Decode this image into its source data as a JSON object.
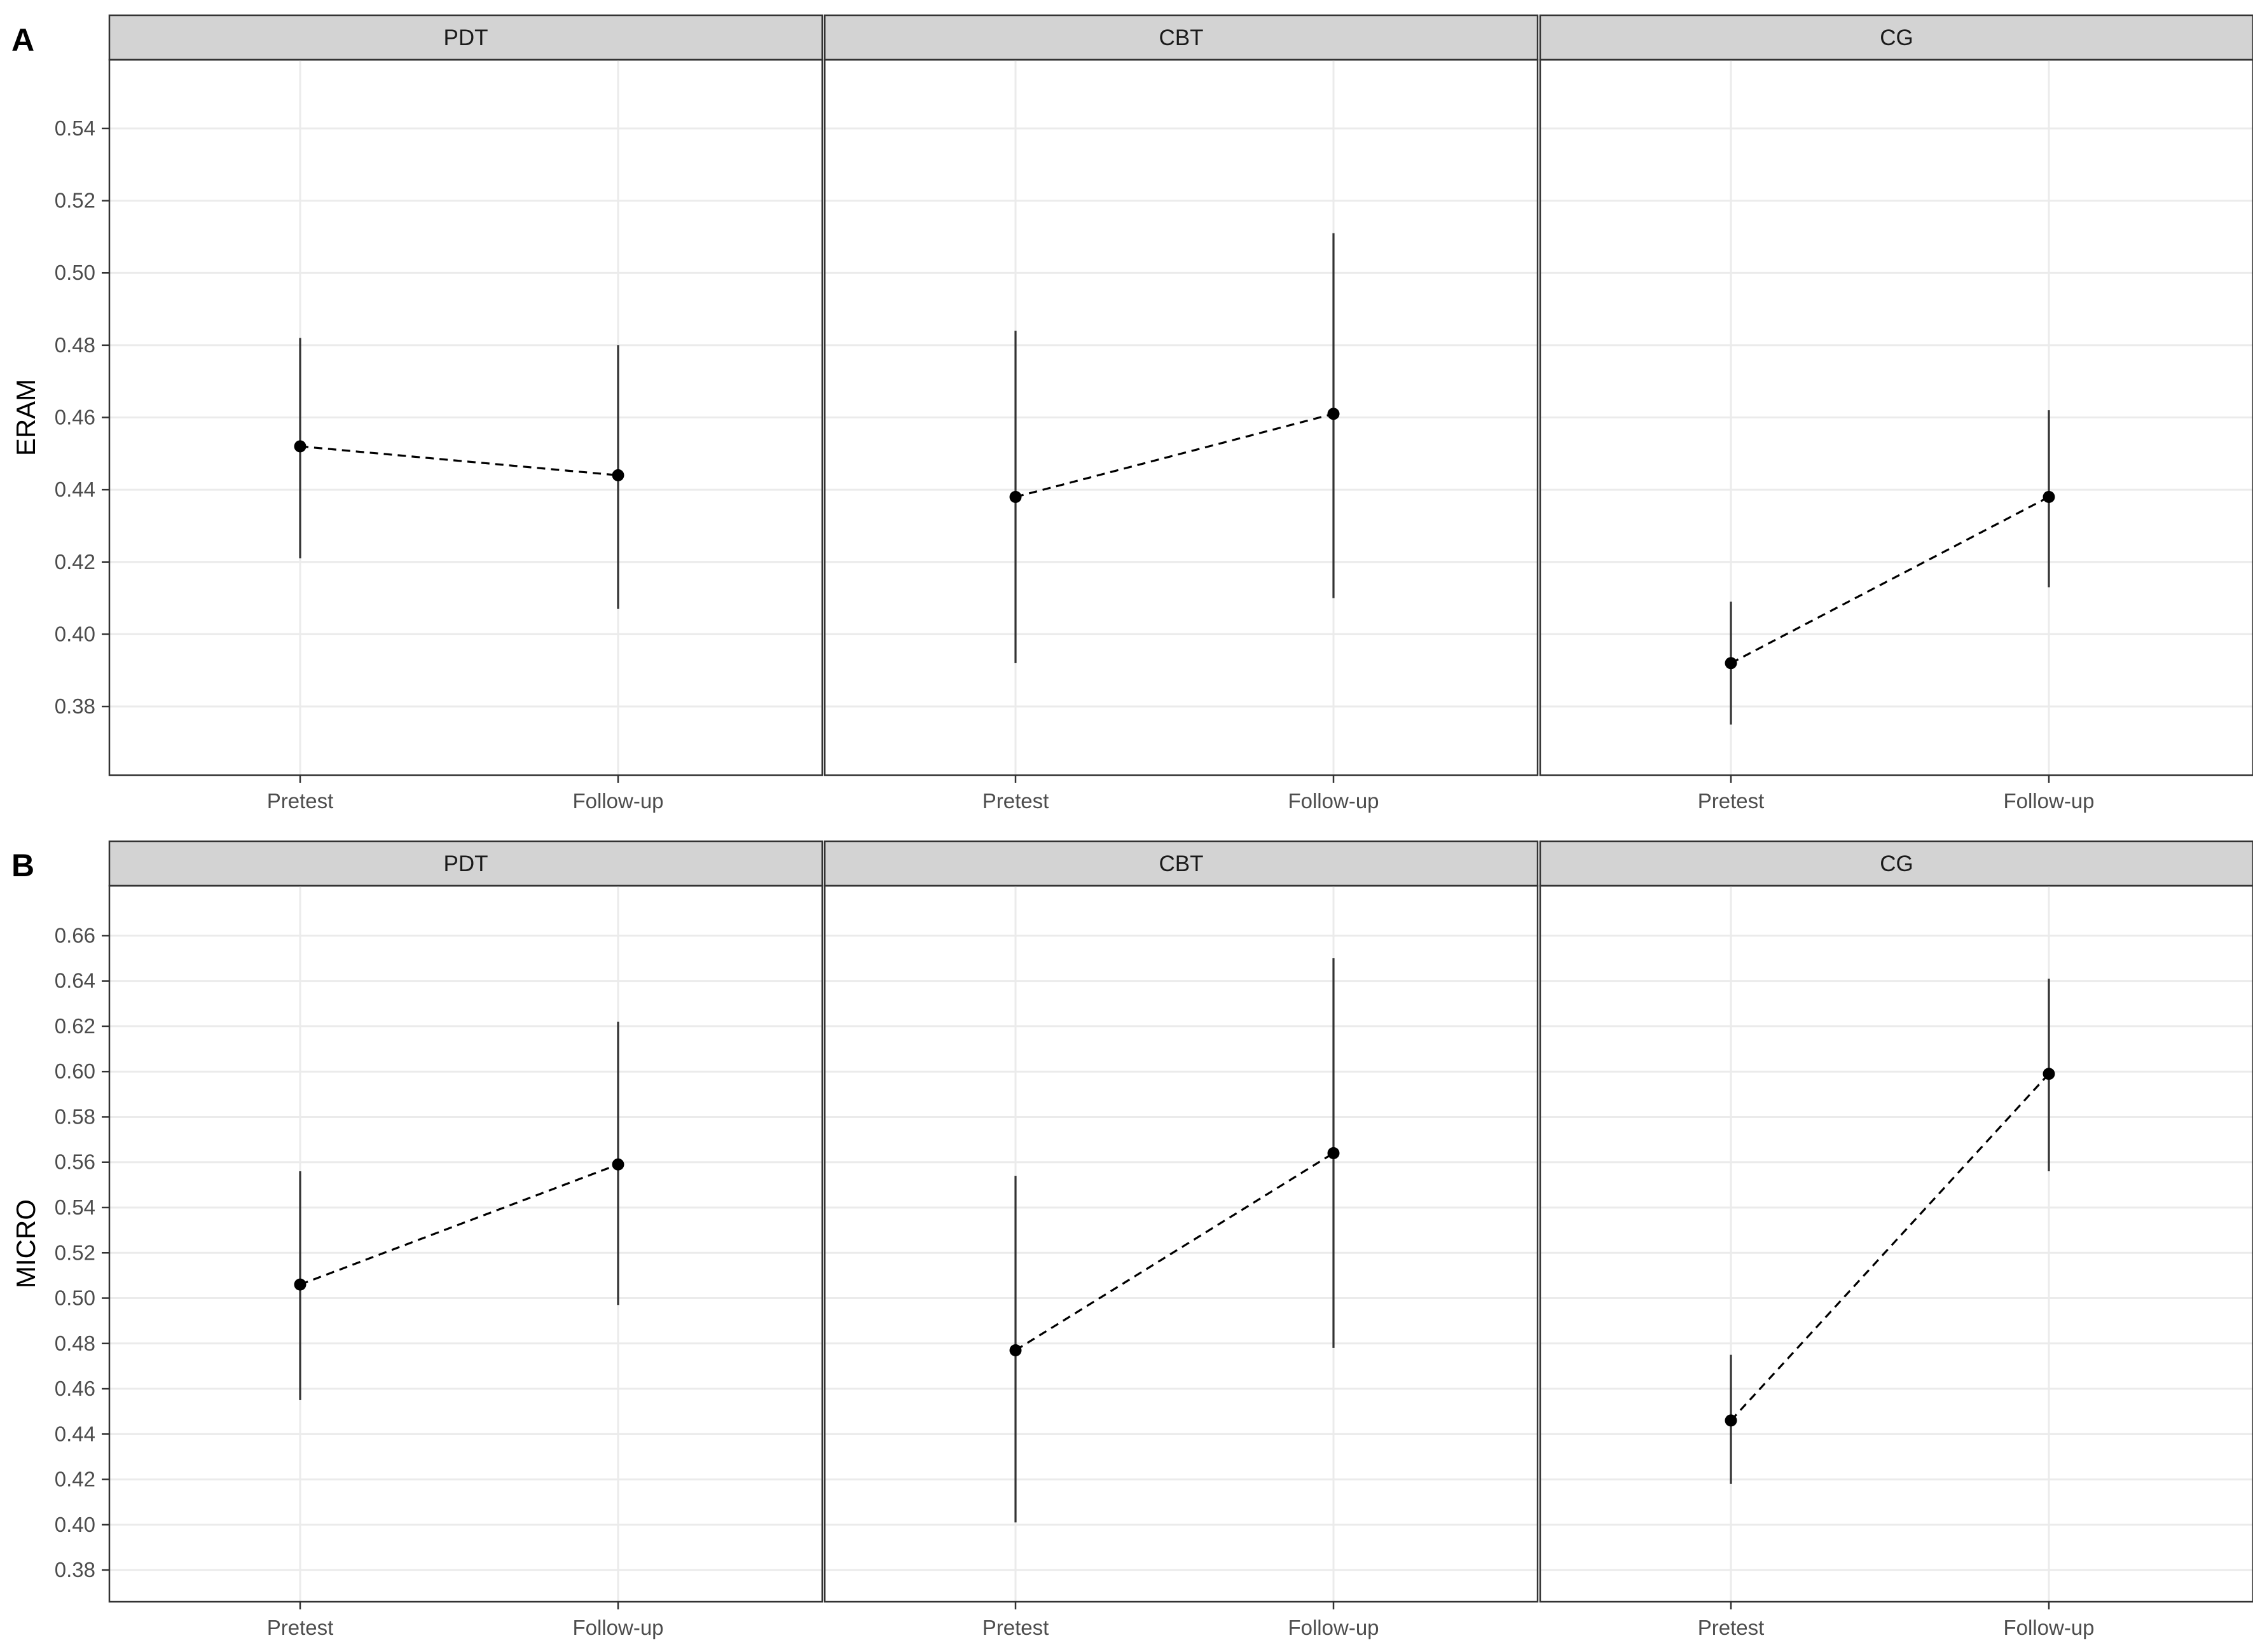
{
  "colors": {
    "strip_fill": "#d3d3d3",
    "panel_border": "#333333",
    "grid": "#ebebeb",
    "point": "#000000",
    "errorbar": "#333333",
    "tick_text": "#4d4d4d"
  },
  "chart_data": [
    {
      "type": "scatter",
      "tag": "A",
      "ylabel": "ERAM",
      "categories": [
        "Pretest",
        "Follow-up"
      ],
      "ylim": [
        0.361,
        0.559
      ],
      "yticks": [
        0.38,
        0.4,
        0.42,
        0.44,
        0.46,
        0.48,
        0.5,
        0.52,
        0.54
      ],
      "ytick_labels": [
        "0.38",
        "0.40",
        "0.42",
        "0.44",
        "0.46",
        "0.48",
        "0.50",
        "0.52",
        "0.54"
      ],
      "grid": true,
      "connector": "dashed",
      "facets": [
        {
          "strip": "PDT",
          "points": [
            {
              "x": "Pretest",
              "y": 0.452,
              "lower": 0.421,
              "upper": 0.482
            },
            {
              "x": "Follow-up",
              "y": 0.444,
              "lower": 0.407,
              "upper": 0.48
            }
          ]
        },
        {
          "strip": "CBT",
          "points": [
            {
              "x": "Pretest",
              "y": 0.438,
              "lower": 0.392,
              "upper": 0.484
            },
            {
              "x": "Follow-up",
              "y": 0.461,
              "lower": 0.41,
              "upper": 0.511
            }
          ]
        },
        {
          "strip": "CG",
          "points": [
            {
              "x": "Pretest",
              "y": 0.392,
              "lower": 0.375,
              "upper": 0.409
            },
            {
              "x": "Follow-up",
              "y": 0.438,
              "lower": 0.413,
              "upper": 0.462
            }
          ]
        }
      ]
    },
    {
      "type": "scatter",
      "tag": "B",
      "ylabel": "MICRO",
      "categories": [
        "Pretest",
        "Follow-up"
      ],
      "ylim": [
        0.366,
        0.682
      ],
      "yticks": [
        0.38,
        0.4,
        0.42,
        0.44,
        0.46,
        0.48,
        0.5,
        0.52,
        0.54,
        0.56,
        0.58,
        0.6,
        0.62,
        0.64,
        0.66
      ],
      "ytick_labels": [
        "0.38",
        "0.40",
        "0.42",
        "0.44",
        "0.46",
        "0.48",
        "0.50",
        "0.52",
        "0.54",
        "0.56",
        "0.58",
        "0.60",
        "0.62",
        "0.64",
        "0.66"
      ],
      "grid": true,
      "connector": "dashed",
      "facets": [
        {
          "strip": "PDT",
          "points": [
            {
              "x": "Pretest",
              "y": 0.506,
              "lower": 0.455,
              "upper": 0.556
            },
            {
              "x": "Follow-up",
              "y": 0.559,
              "lower": 0.497,
              "upper": 0.622
            }
          ]
        },
        {
          "strip": "CBT",
          "points": [
            {
              "x": "Pretest",
              "y": 0.477,
              "lower": 0.401,
              "upper": 0.554
            },
            {
              "x": "Follow-up",
              "y": 0.564,
              "lower": 0.478,
              "upper": 0.65
            }
          ]
        },
        {
          "strip": "CG",
          "points": [
            {
              "x": "Pretest",
              "y": 0.446,
              "lower": 0.418,
              "upper": 0.475
            },
            {
              "x": "Follow-up",
              "y": 0.599,
              "lower": 0.556,
              "upper": 0.641
            }
          ]
        }
      ]
    }
  ]
}
